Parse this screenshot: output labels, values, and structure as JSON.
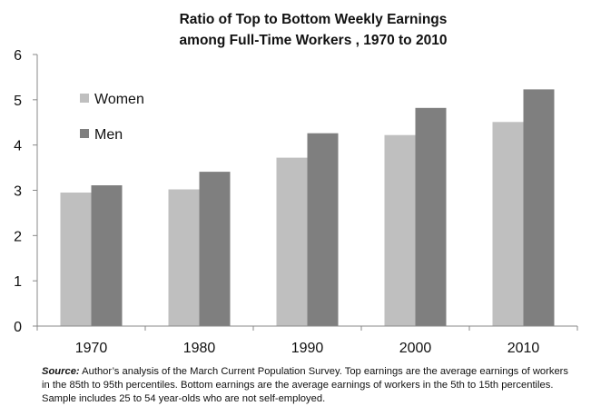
{
  "chart_data": {
    "type": "bar",
    "title_lines": [
      "Ratio of Top to Bottom Weekly Earnings",
      "among Full-Time Workers , 1970 to 2010"
    ],
    "categories": [
      "1970",
      "1980",
      "1990",
      "2000",
      "2010"
    ],
    "series": [
      {
        "name": "Women",
        "color": "#bfbfbf",
        "values": [
          2.95,
          3.02,
          3.72,
          4.22,
          4.51
        ]
      },
      {
        "name": "Men",
        "color": "#7f7f7f",
        "values": [
          3.11,
          3.41,
          4.26,
          4.82,
          5.23
        ]
      }
    ],
    "ylim": [
      0,
      6
    ],
    "yticks": [
      "0",
      "1",
      "2",
      "3",
      "4",
      "5",
      "6"
    ],
    "xlabel": "",
    "ylabel": "",
    "grid": false,
    "legend_position": "top-left"
  },
  "source_note": {
    "label": "Source:",
    "text": " Author’s analysis of the March Current Population Survey. Top earnings are the average earnings of workers in the 85th to 95th percentiles. Bottom earnings are the average earnings of workers in the 5th to 15th percentiles. Sample includes 25 to 54 year-olds who are not self-employed."
  }
}
